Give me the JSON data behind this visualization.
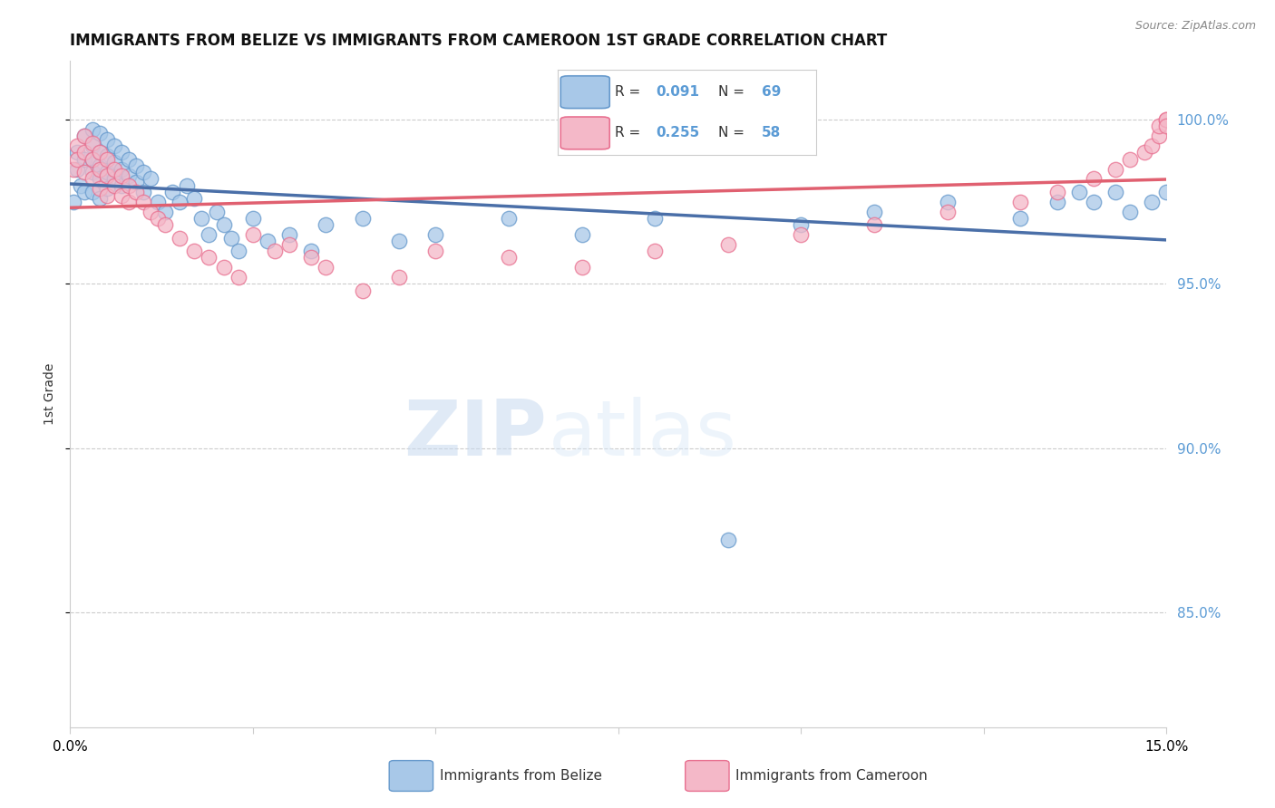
{
  "title": "IMMIGRANTS FROM BELIZE VS IMMIGRANTS FROM CAMEROON 1ST GRADE CORRELATION CHART",
  "source": "Source: ZipAtlas.com",
  "ylabel": "1st Grade",
  "color_belize_fill": "#a8c8e8",
  "color_belize_edge": "#6699cc",
  "color_cameroon_fill": "#f4b8c8",
  "color_cameroon_edge": "#e87090",
  "color_line_belize": "#4a6fa8",
  "color_line_cameroon": "#e06070",
  "color_line_belize_dashed": "#8ab0d8",
  "color_ytick": "#5b9bd5",
  "background": "#ffffff",
  "xlim": [
    0.0,
    0.15
  ],
  "ylim": [
    0.815,
    1.018
  ],
  "yticks": [
    0.85,
    0.9,
    0.95,
    1.0
  ],
  "ytick_labels": [
    "85.0%",
    "90.0%",
    "95.0%",
    "100.0%"
  ],
  "belize_x": [
    0.0005,
    0.001,
    0.001,
    0.0015,
    0.002,
    0.002,
    0.002,
    0.003,
    0.003,
    0.003,
    0.003,
    0.003,
    0.004,
    0.004,
    0.004,
    0.004,
    0.004,
    0.005,
    0.005,
    0.005,
    0.005,
    0.006,
    0.006,
    0.006,
    0.007,
    0.007,
    0.007,
    0.008,
    0.008,
    0.009,
    0.009,
    0.01,
    0.01,
    0.011,
    0.012,
    0.013,
    0.014,
    0.015,
    0.016,
    0.017,
    0.018,
    0.019,
    0.02,
    0.021,
    0.022,
    0.023,
    0.025,
    0.027,
    0.03,
    0.033,
    0.035,
    0.04,
    0.045,
    0.05,
    0.06,
    0.07,
    0.08,
    0.09,
    0.1,
    0.11,
    0.12,
    0.13,
    0.135,
    0.138,
    0.14,
    0.143,
    0.145,
    0.148,
    0.15
  ],
  "belize_y": [
    0.975,
    0.99,
    0.985,
    0.98,
    0.995,
    0.988,
    0.978,
    0.997,
    0.992,
    0.988,
    0.984,
    0.978,
    0.996,
    0.99,
    0.986,
    0.982,
    0.976,
    0.994,
    0.989,
    0.984,
    0.979,
    0.992,
    0.987,
    0.982,
    0.99,
    0.985,
    0.98,
    0.988,
    0.983,
    0.986,
    0.981,
    0.984,
    0.978,
    0.982,
    0.975,
    0.972,
    0.978,
    0.975,
    0.98,
    0.976,
    0.97,
    0.965,
    0.972,
    0.968,
    0.964,
    0.96,
    0.97,
    0.963,
    0.965,
    0.96,
    0.968,
    0.97,
    0.963,
    0.965,
    0.97,
    0.965,
    0.97,
    0.872,
    0.968,
    0.972,
    0.975,
    0.97,
    0.975,
    0.978,
    0.975,
    0.978,
    0.972,
    0.975,
    0.978
  ],
  "cameroon_x": [
    0.0005,
    0.001,
    0.001,
    0.002,
    0.002,
    0.002,
    0.003,
    0.003,
    0.003,
    0.004,
    0.004,
    0.004,
    0.005,
    0.005,
    0.005,
    0.006,
    0.006,
    0.007,
    0.007,
    0.008,
    0.008,
    0.009,
    0.01,
    0.011,
    0.012,
    0.013,
    0.015,
    0.017,
    0.019,
    0.021,
    0.023,
    0.025,
    0.028,
    0.03,
    0.033,
    0.035,
    0.04,
    0.045,
    0.05,
    0.06,
    0.07,
    0.08,
    0.09,
    0.1,
    0.11,
    0.12,
    0.13,
    0.135,
    0.14,
    0.143,
    0.145,
    0.147,
    0.148,
    0.149,
    0.149,
    0.15,
    0.15,
    0.15
  ],
  "cameroon_y": [
    0.985,
    0.992,
    0.988,
    0.995,
    0.99,
    0.984,
    0.993,
    0.988,
    0.982,
    0.99,
    0.985,
    0.979,
    0.988,
    0.983,
    0.977,
    0.985,
    0.98,
    0.983,
    0.977,
    0.98,
    0.975,
    0.978,
    0.975,
    0.972,
    0.97,
    0.968,
    0.964,
    0.96,
    0.958,
    0.955,
    0.952,
    0.965,
    0.96,
    0.962,
    0.958,
    0.955,
    0.948,
    0.952,
    0.96,
    0.958,
    0.955,
    0.96,
    0.962,
    0.965,
    0.968,
    0.972,
    0.975,
    0.978,
    0.982,
    0.985,
    0.988,
    0.99,
    0.992,
    0.995,
    0.998,
    1.0,
    1.0,
    0.998
  ]
}
